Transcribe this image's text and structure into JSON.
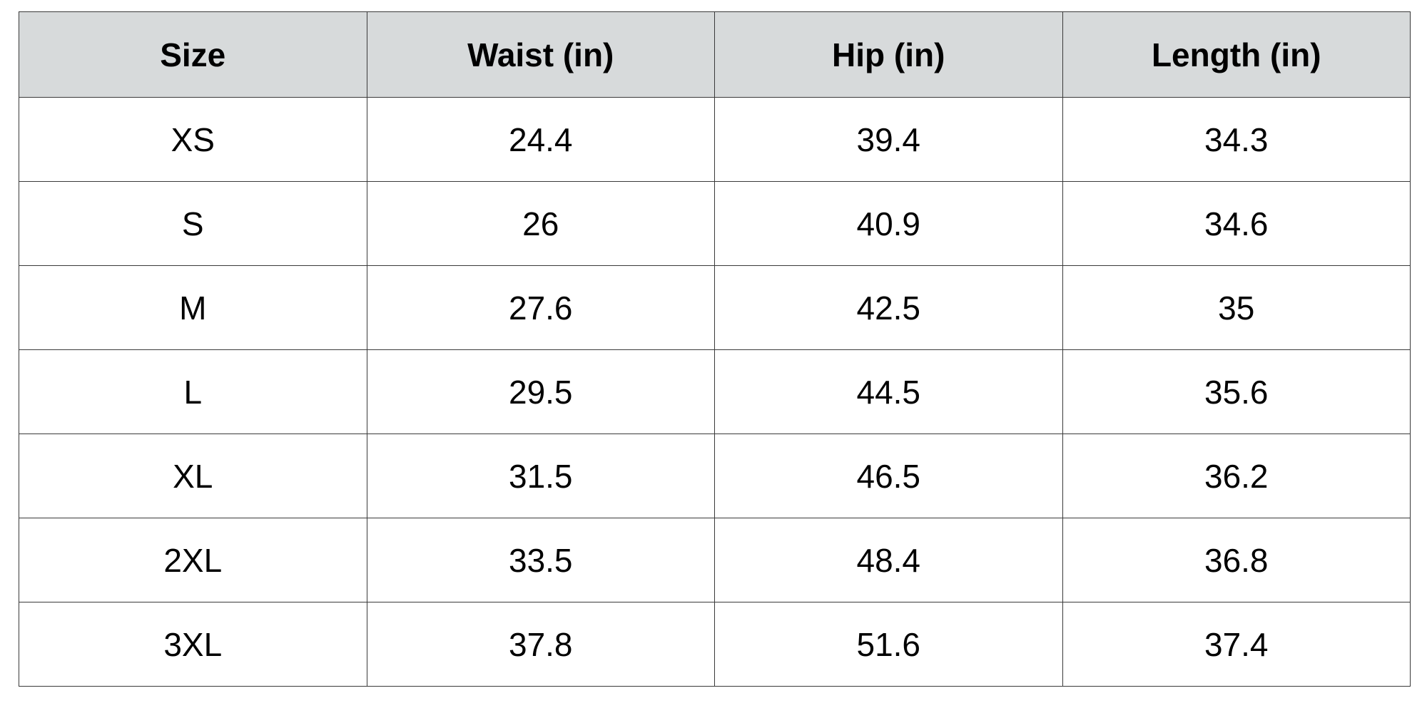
{
  "table": {
    "headers": [
      "Size",
      "Waist (in)",
      "Hip (in)",
      "Length (in)"
    ],
    "rows": [
      [
        "XS",
        "24.4",
        "39.4",
        "34.3"
      ],
      [
        "S",
        "26",
        "40.9",
        "34.6"
      ],
      [
        "M",
        "27.6",
        "42.5",
        "35"
      ],
      [
        "L",
        "29.5",
        "44.5",
        "35.6"
      ],
      [
        "XL",
        "31.5",
        "46.5",
        "36.2"
      ],
      [
        "2XL",
        "33.5",
        "48.4",
        "36.8"
      ],
      [
        "3XL",
        "37.8",
        "51.6",
        "37.4"
      ]
    ],
    "header_background": "#d7dadb",
    "border_color": "#3a3a3a"
  }
}
